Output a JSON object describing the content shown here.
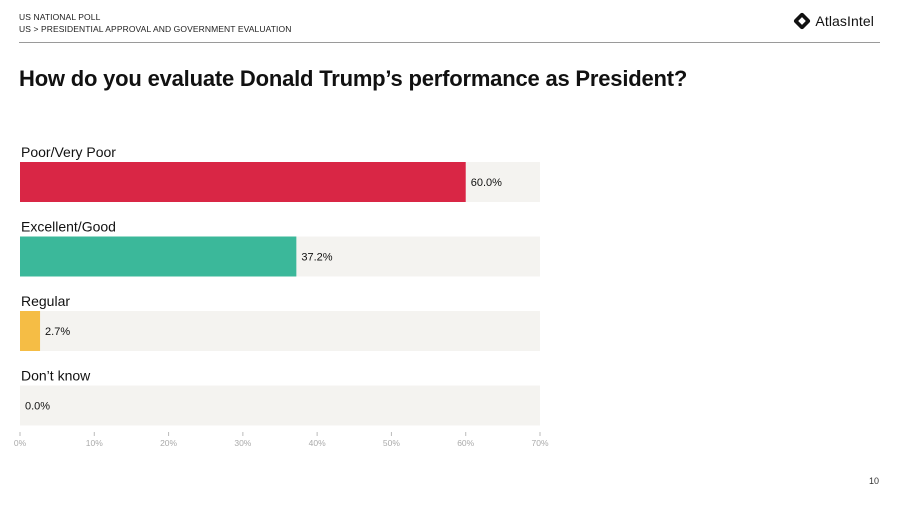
{
  "header": {
    "line1": "US NATIONAL POLL",
    "line2": "US > PRESIDENTIAL APPROVAL AND GOVERNMENT EVALUATION"
  },
  "brand": {
    "name": "AtlasIntel",
    "icon": "atlasintel-logo-icon"
  },
  "title": "How do you evaluate Donald Trump’s performance as President?",
  "page_number": "10",
  "chart_data": {
    "type": "bar",
    "orientation": "horizontal",
    "categories": [
      "Poor/Very Poor",
      "Excellent/Good",
      "Regular",
      "Don’t know"
    ],
    "values": [
      60.0,
      37.2,
      2.7,
      0.0
    ],
    "value_labels": [
      "60.0%",
      "37.2%",
      "2.7%",
      "0.0%"
    ],
    "colors": [
      "#d92645",
      "#3bb89a",
      "#f5bd45",
      "#f5bd45"
    ],
    "track_color": "#f4f3f0",
    "xlim": [
      0,
      70
    ],
    "x_ticks": [
      0,
      10,
      20,
      30,
      40,
      50,
      60,
      70
    ],
    "x_tick_labels": [
      "0%",
      "10%",
      "20%",
      "30%",
      "40%",
      "50%",
      "60%",
      "70%"
    ],
    "grid": false,
    "legend": "none"
  }
}
